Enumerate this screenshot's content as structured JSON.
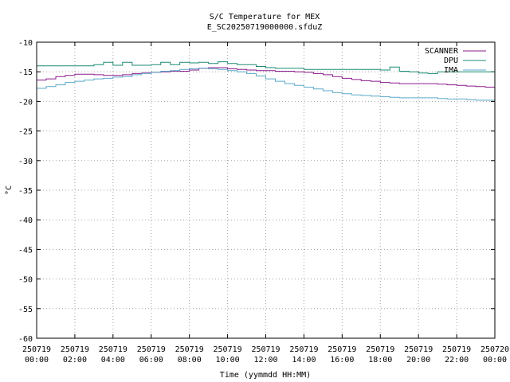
{
  "chart_data": {
    "type": "line",
    "title": "S/C Temperature for MEX",
    "subtitle": "E_SC20250719000000.sfduZ",
    "xlabel": "Time (yymmdd HH:MM)",
    "ylabel": "°C",
    "xlim": [
      0,
      24
    ],
    "ylim": [
      -60,
      -10
    ],
    "grid": true,
    "legend_position": "top-right",
    "x_ticks": [
      {
        "value": 0,
        "date": "250719",
        "time": "00:00"
      },
      {
        "value": 2,
        "date": "250719",
        "time": "02:00"
      },
      {
        "value": 4,
        "date": "250719",
        "time": "04:00"
      },
      {
        "value": 6,
        "date": "250719",
        "time": "06:00"
      },
      {
        "value": 8,
        "date": "250719",
        "time": "08:00"
      },
      {
        "value": 10,
        "date": "250719",
        "time": "10:00"
      },
      {
        "value": 12,
        "date": "250719",
        "time": "12:00"
      },
      {
        "value": 14,
        "date": "250719",
        "time": "14:00"
      },
      {
        "value": 16,
        "date": "250719",
        "time": "16:00"
      },
      {
        "value": 18,
        "date": "250719",
        "time": "18:00"
      },
      {
        "value": 20,
        "date": "250719",
        "time": "20:00"
      },
      {
        "value": 22,
        "date": "250719",
        "time": "22:00"
      },
      {
        "value": 24,
        "date": "250720",
        "time": "00:00"
      }
    ],
    "y_ticks": [
      -10,
      -15,
      -20,
      -25,
      -30,
      -35,
      -40,
      -45,
      -50,
      -55,
      -60
    ],
    "series": [
      {
        "name": "SCANNER",
        "color": "#8b1a8b",
        "x": [
          0,
          0.5,
          1,
          1.5,
          2,
          2.5,
          3,
          3.5,
          4,
          4.5,
          5,
          5.5,
          6,
          6.5,
          7,
          7.5,
          8,
          8.5,
          9,
          9.5,
          10,
          10.5,
          11,
          11.5,
          12,
          12.5,
          13,
          13.5,
          14,
          14.5,
          15,
          15.5,
          16,
          16.5,
          17,
          17.5,
          18,
          18.5,
          19,
          19.5,
          20,
          20.5,
          21,
          21.5,
          22,
          22.5,
          23,
          23.5,
          24
        ],
        "values": [
          -16.4,
          -16.2,
          -15.8,
          -15.6,
          -15.4,
          -15.4,
          -15.5,
          -15.6,
          -15.6,
          -15.5,
          -15.3,
          -15.2,
          -15.1,
          -15.0,
          -14.9,
          -14.9,
          -14.7,
          -14.4,
          -14.3,
          -14.3,
          -14.5,
          -14.6,
          -14.7,
          -14.8,
          -14.8,
          -14.9,
          -14.9,
          -15.0,
          -15.1,
          -15.3,
          -15.5,
          -15.8,
          -16.1,
          -16.3,
          -16.5,
          -16.6,
          -16.8,
          -16.9,
          -17.0,
          -17.0,
          -17.0,
          -17.0,
          -17.1,
          -17.2,
          -17.3,
          -17.4,
          -17.5,
          -17.6,
          -17.7
        ]
      },
      {
        "name": "DPU",
        "color": "#1a8b73",
        "x": [
          0,
          1,
          2,
          3,
          3.5,
          4,
          4.5,
          5,
          5.5,
          6,
          6.5,
          7,
          7.5,
          8,
          8.5,
          9,
          9.5,
          10,
          10.5,
          11,
          11.5,
          12,
          12.5,
          13,
          14,
          15,
          16,
          17,
          18,
          18.5,
          19,
          19.5,
          20,
          20.5,
          21,
          22,
          23,
          24
        ],
        "values": [
          -14.0,
          -14.0,
          -14.0,
          -13.8,
          -13.4,
          -13.9,
          -13.4,
          -13.9,
          -13.9,
          -13.8,
          -13.4,
          -13.8,
          -13.4,
          -13.5,
          -13.4,
          -13.6,
          -13.3,
          -13.6,
          -13.8,
          -13.8,
          -14.1,
          -14.3,
          -14.4,
          -14.4,
          -14.6,
          -14.6,
          -14.6,
          -14.6,
          -14.7,
          -14.2,
          -14.9,
          -15.0,
          -15.2,
          -15.3,
          -15.0,
          -15.0,
          -15.0,
          -14.8
        ]
      },
      {
        "name": "IMA",
        "color": "#5aa9c8",
        "x": [
          0,
          0.5,
          1,
          1.5,
          2,
          2.5,
          3,
          3.5,
          4,
          4.5,
          5,
          5.5,
          6,
          6.5,
          7,
          7.5,
          8,
          8.5,
          9,
          9.5,
          10,
          10.5,
          11,
          11.5,
          12,
          12.5,
          13,
          13.5,
          14,
          14.5,
          15,
          15.5,
          16,
          16.5,
          17,
          17.5,
          18,
          18.5,
          19,
          19.5,
          20,
          20.5,
          21,
          21.5,
          22,
          22.5,
          23,
          23.5,
          24
        ],
        "values": [
          -17.8,
          -17.5,
          -17.2,
          -16.8,
          -16.6,
          -16.4,
          -16.2,
          -16.1,
          -15.9,
          -15.8,
          -15.5,
          -15.3,
          -15.1,
          -14.9,
          -14.8,
          -14.6,
          -14.5,
          -14.4,
          -14.5,
          -14.6,
          -14.8,
          -15.0,
          -15.3,
          -15.7,
          -16.2,
          -16.6,
          -17.0,
          -17.3,
          -17.6,
          -17.9,
          -18.2,
          -18.5,
          -18.7,
          -18.9,
          -19.0,
          -19.1,
          -19.2,
          -19.3,
          -19.4,
          -19.4,
          -19.4,
          -19.4,
          -19.5,
          -19.6,
          -19.6,
          -19.7,
          -19.8,
          -19.8,
          -19.8
        ]
      }
    ]
  }
}
